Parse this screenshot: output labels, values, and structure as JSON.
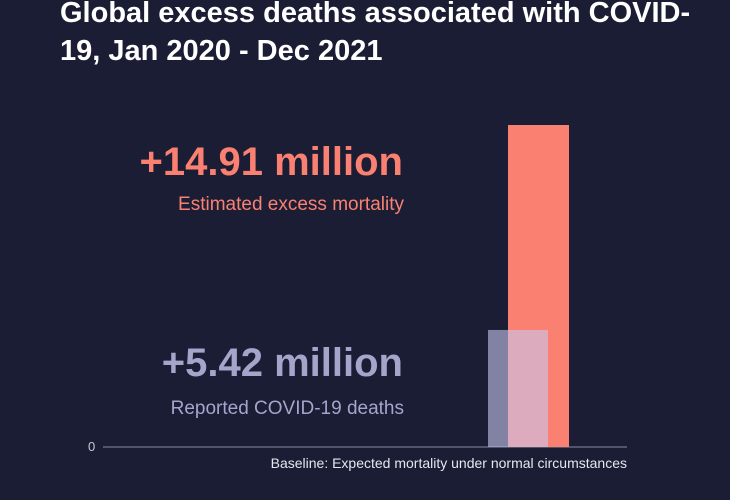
{
  "chart_data": {
    "type": "bar",
    "title": "Global excess deaths associated with COVID-19, Jan 2020 - Dec 2021",
    "series": [
      {
        "name": "Estimated excess mortality",
        "value": 14.91,
        "value_label": "+14.91 million",
        "color": "#fa8072"
      },
      {
        "name": "Reported COVID-19 deaths",
        "value": 5.42,
        "value_label": "+5.42 million",
        "color": "#a5a5cc"
      }
    ],
    "y_tick_labels": [
      "0"
    ],
    "baseline_label": "Baseline: Expected mortality under normal circumstances",
    "ylim": [
      0,
      14.91
    ],
    "grid": false
  }
}
